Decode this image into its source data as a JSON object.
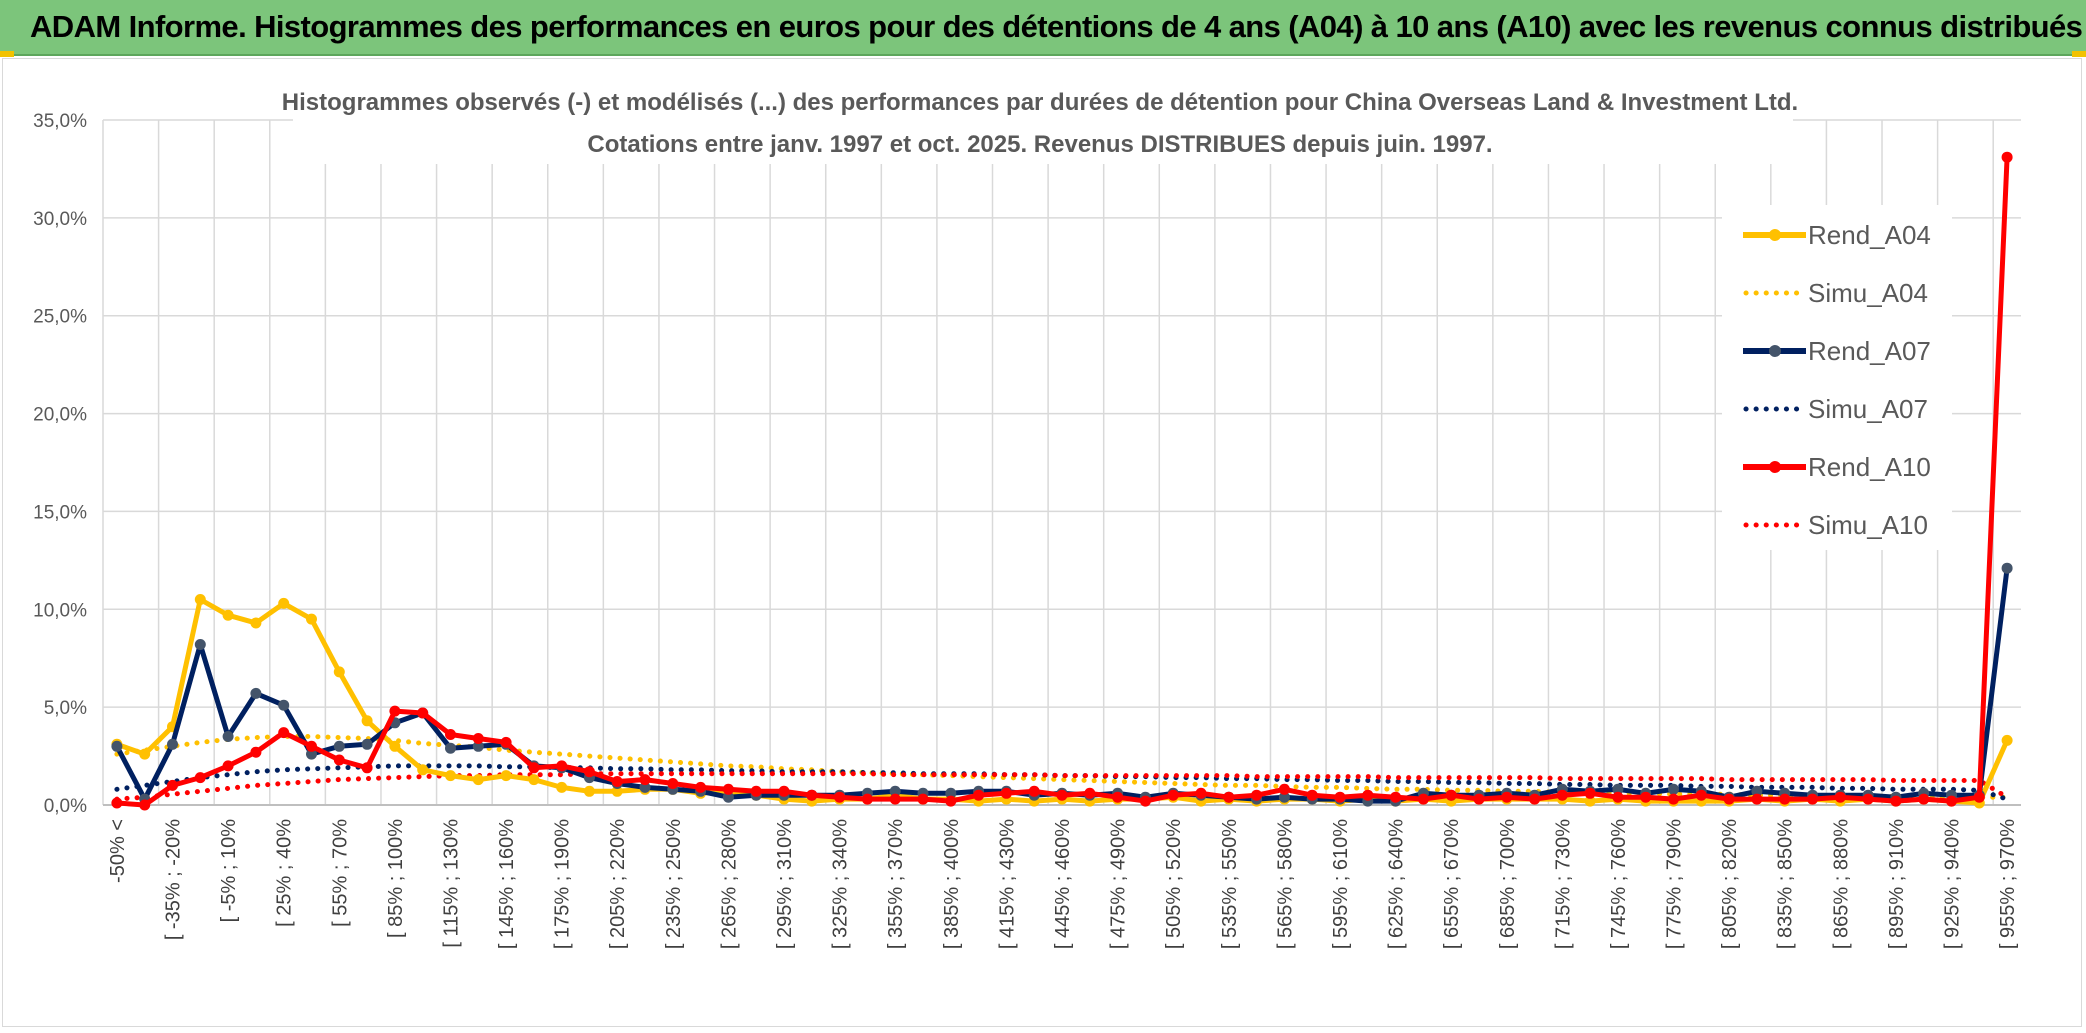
{
  "banner": {
    "title": "ADAM Informe. Histogrammes des performances en euros pour des détentions de 4 ans (A04) à 10 ans (A10) avec les revenus connus distribués"
  },
  "colors": {
    "banner": "#7cc57b",
    "A04": "#ffc000",
    "A07": "#002060",
    "A07_marker": "#44546a",
    "A10": "#ff0000",
    "grid": "#d9d9d9"
  },
  "chart_data": {
    "type": "line",
    "title": "Histogrammes observés (-) et modélisés (...) des performances par durées de détention pour China Overseas Land & Investment Ltd.",
    "subtitle": "Cotations entre janv. 1997 et oct. 2025. Revenus DISTRIBUES depuis juin. 1997.",
    "xlabel": "",
    "ylabel": "",
    "ylim": [
      0,
      35
    ],
    "y_ticks": [
      "0,0%",
      "5,0%",
      "10,0%",
      "15,0%",
      "20,0%",
      "25,0%",
      "30,0%",
      "35,0%"
    ],
    "grid": true,
    "legend_position": "right",
    "x_tick_labels": [
      "-50% <",
      "[ -35% ; -20%",
      "[ -5% ; 10%",
      "[ 25% ; 40%",
      "[ 55% ; 70%",
      "[ 85% ; 100%",
      "[ 115% ; 130%",
      "[ 145% ; 160%",
      "[ 175% ; 190%",
      "[ 205% ; 220%",
      "[ 235% ; 250%",
      "[ 265% ; 280%",
      "[ 295% ; 310%",
      "[ 325% ; 340%",
      "[ 355% ; 370%",
      "[ 385% ; 400%",
      "[ 415% ; 430%",
      "[ 445% ; 460%",
      "[ 475% ; 490%",
      "[ 505% ; 520%",
      "[ 535% ; 550%",
      "[ 565% ; 580%",
      "[ 595% ; 610%",
      "[ 625% ; 640%",
      "[ 655% ; 670%",
      "[ 685% ; 700%",
      "[ 715% ; 730%",
      "[ 745% ; 760%",
      "[ 775% ; 790%",
      "[ 805% ; 820%",
      "[ 835% ; 850%",
      "[ 865% ; 880%",
      "[ 895% ; 910%",
      "[ 925% ; 940%",
      "[ 955% ; 970%"
    ],
    "x_categories_count": 69,
    "series": [
      {
        "name": "Rend_A04",
        "style": "solid",
        "color": "#ffc000",
        "values": [
          3.1,
          2.6,
          4.0,
          10.5,
          9.7,
          9.3,
          10.3,
          9.5,
          6.8,
          4.3,
          3.0,
          1.8,
          1.5,
          1.3,
          1.5,
          1.3,
          0.9,
          0.7,
          0.7,
          0.8,
          0.8,
          0.6,
          0.7,
          0.5,
          0.3,
          0.2,
          0.3,
          0.3,
          0.5,
          0.3,
          0.3,
          0.2,
          0.3,
          0.2,
          0.3,
          0.2,
          0.3,
          0.3,
          0.4,
          0.2,
          0.3,
          0.2,
          0.3,
          0.3,
          0.2,
          0.3,
          0.2,
          0.3,
          0.2,
          0.3,
          0.3,
          0.3,
          0.3,
          0.2,
          0.3,
          0.2,
          0.2,
          0.2,
          0.2,
          0.3,
          0.2,
          0.3,
          0.2,
          0.3,
          0.2,
          0.3,
          0.2,
          0.1,
          3.3
        ]
      },
      {
        "name": "Simu_A04",
        "style": "dotted",
        "color": "#ffc000",
        "values": [
          2.6,
          2.8,
          3.0,
          3.2,
          3.35,
          3.45,
          3.5,
          3.5,
          3.45,
          3.4,
          3.3,
          3.15,
          3.05,
          2.95,
          2.8,
          2.7,
          2.6,
          2.5,
          2.4,
          2.3,
          2.2,
          2.1,
          2.0,
          1.95,
          1.85,
          1.8,
          1.7,
          1.65,
          1.6,
          1.55,
          1.5,
          1.45,
          1.4,
          1.35,
          1.3,
          1.25,
          1.2,
          1.15,
          1.1,
          1.05,
          1.0,
          1.0,
          0.95,
          0.9,
          0.9,
          0.85,
          0.8,
          0.8,
          0.75,
          0.75,
          0.7,
          0.7,
          0.65,
          0.65,
          0.6,
          0.6,
          0.55,
          0.55,
          0.55,
          0.5,
          0.5,
          0.5,
          0.45,
          0.45,
          0.45,
          0.4,
          0.4,
          0.4,
          0.4
        ]
      },
      {
        "name": "Rend_A07",
        "style": "solid",
        "color": "#002060",
        "values": [
          3.0,
          0.3,
          3.1,
          8.2,
          3.5,
          5.7,
          5.1,
          2.6,
          3.0,
          3.1,
          4.2,
          4.7,
          2.9,
          3.0,
          3.1,
          2.0,
          1.9,
          1.4,
          1.1,
          0.9,
          0.8,
          0.7,
          0.4,
          0.5,
          0.5,
          0.5,
          0.5,
          0.6,
          0.7,
          0.6,
          0.6,
          0.7,
          0.7,
          0.5,
          0.6,
          0.5,
          0.6,
          0.4,
          0.6,
          0.5,
          0.4,
          0.3,
          0.4,
          0.3,
          0.3,
          0.2,
          0.2,
          0.6,
          0.5,
          0.5,
          0.6,
          0.5,
          0.8,
          0.7,
          0.8,
          0.6,
          0.8,
          0.7,
          0.4,
          0.7,
          0.6,
          0.5,
          0.5,
          0.5,
          0.4,
          0.6,
          0.5,
          0.5,
          12.1
        ]
      },
      {
        "name": "Simu_A07",
        "style": "dotted",
        "color": "#002060",
        "values": [
          0.8,
          1.0,
          1.2,
          1.4,
          1.55,
          1.7,
          1.8,
          1.85,
          1.9,
          1.95,
          2.0,
          2.0,
          2.0,
          2.0,
          1.95,
          1.95,
          1.9,
          1.9,
          1.85,
          1.85,
          1.8,
          1.8,
          1.75,
          1.75,
          1.7,
          1.7,
          1.7,
          1.65,
          1.65,
          1.6,
          1.6,
          1.6,
          1.55,
          1.55,
          1.5,
          1.5,
          1.45,
          1.45,
          1.4,
          1.4,
          1.35,
          1.35,
          1.3,
          1.3,
          1.25,
          1.25,
          1.2,
          1.2,
          1.15,
          1.15,
          1.1,
          1.1,
          1.05,
          1.05,
          1.0,
          1.0,
          1.0,
          0.95,
          0.95,
          0.9,
          0.9,
          0.9,
          0.85,
          0.85,
          0.8,
          0.8,
          0.8,
          0.75,
          0.3
        ]
      },
      {
        "name": "Rend_A10",
        "style": "solid",
        "color": "#ff0000",
        "values": [
          0.1,
          0.0,
          1.0,
          1.4,
          2.0,
          2.7,
          3.7,
          3.0,
          2.3,
          1.9,
          4.8,
          4.7,
          3.6,
          3.4,
          3.2,
          1.9,
          2.0,
          1.7,
          1.2,
          1.3,
          1.1,
          0.9,
          0.8,
          0.7,
          0.7,
          0.5,
          0.4,
          0.3,
          0.3,
          0.3,
          0.2,
          0.5,
          0.6,
          0.7,
          0.5,
          0.6,
          0.4,
          0.2,
          0.5,
          0.6,
          0.4,
          0.5,
          0.8,
          0.5,
          0.4,
          0.5,
          0.4,
          0.3,
          0.5,
          0.3,
          0.4,
          0.3,
          0.5,
          0.6,
          0.4,
          0.4,
          0.3,
          0.5,
          0.3,
          0.3,
          0.3,
          0.3,
          0.4,
          0.3,
          0.2,
          0.3,
          0.2,
          0.4,
          33.1
        ]
      },
      {
        "name": "Simu_A10",
        "style": "dotted",
        "color": "#ff0000",
        "values": [
          0.3,
          0.4,
          0.55,
          0.7,
          0.85,
          1.0,
          1.1,
          1.2,
          1.3,
          1.35,
          1.4,
          1.45,
          1.5,
          1.5,
          1.55,
          1.55,
          1.55,
          1.6,
          1.6,
          1.6,
          1.6,
          1.6,
          1.6,
          1.6,
          1.6,
          1.6,
          1.6,
          1.6,
          1.55,
          1.55,
          1.55,
          1.55,
          1.55,
          1.55,
          1.5,
          1.5,
          1.5,
          1.5,
          1.5,
          1.5,
          1.5,
          1.45,
          1.45,
          1.45,
          1.45,
          1.45,
          1.4,
          1.4,
          1.4,
          1.4,
          1.4,
          1.4,
          1.35,
          1.35,
          1.35,
          1.35,
          1.35,
          1.35,
          1.3,
          1.3,
          1.3,
          1.3,
          1.3,
          1.3,
          1.25,
          1.25,
          1.25,
          1.25,
          0.4
        ]
      }
    ]
  }
}
